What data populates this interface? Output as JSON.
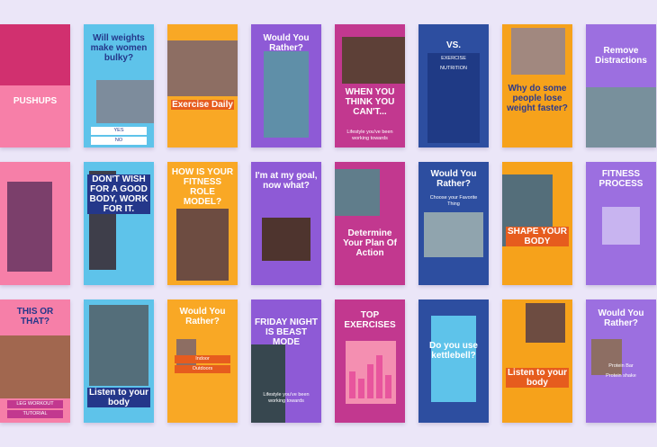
{
  "cards": [
    {
      "title": "PUSHUPS"
    },
    {
      "title": "Will weights make women bulky?",
      "labels": [
        "YES",
        "NO"
      ]
    },
    {
      "title": "Exercise Daily"
    },
    {
      "title": "Would You Rather?"
    },
    {
      "title": "WHEN YOU THINK YOU CAN'T...",
      "labels": [
        "Lifestyle you've been working towards"
      ]
    },
    {
      "title": "VS.",
      "labels": [
        "EXERCISE",
        "NUTRITION"
      ]
    },
    {
      "title": "Why do some people lose weight faster?"
    },
    {
      "title": "Remove Distractions"
    },
    {},
    {
      "title": "DON'T WISH FOR A GOOD BODY, WORK FOR IT."
    },
    {
      "title": "HOW IS YOUR FITNESS ROLE MODEL?"
    },
    {
      "title": "I'm at my goal, now what?"
    },
    {
      "title": "Determine Your Plan Of Action"
    },
    {
      "title": "Would You Rather?",
      "labels": [
        "Choose your Favorite Thing"
      ]
    },
    {
      "title": "SHAPE YOUR BODY"
    },
    {
      "title": "FITNESS PROCESS"
    },
    {
      "title": "THIS OR THAT?",
      "labels": [
        "LEG WORKOUT",
        "TUTORIAL"
      ]
    },
    {
      "title": "Listen to your body"
    },
    {
      "title": "Would You Rather?",
      "labels": [
        "Indoor",
        "Outdoors"
      ]
    },
    {
      "title": "FRIDAY NIGHT IS BEAST MODE",
      "labels": [
        "Lifestyle you've been working towards"
      ]
    },
    {
      "title": "TOP EXERCISES"
    },
    {
      "title": "Do you use kettlebell?"
    },
    {
      "title": "Listen to your body"
    },
    {
      "title": "Would You Rather?",
      "labels": [
        "Protein Bar",
        "Protein shake"
      ]
    }
  ]
}
